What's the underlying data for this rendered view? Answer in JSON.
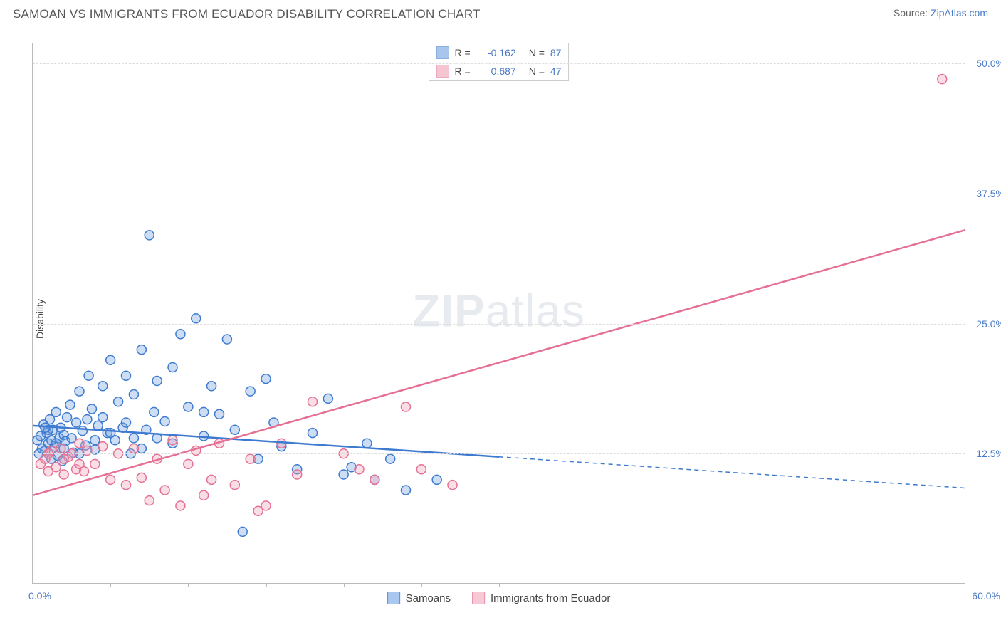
{
  "title": "SAMOAN VS IMMIGRANTS FROM ECUADOR DISABILITY CORRELATION CHART",
  "source_prefix": "Source: ",
  "source_link": "ZipAtlas.com",
  "ylabel": "Disability",
  "watermark_a": "ZIP",
  "watermark_b": "atlas",
  "chart": {
    "type": "scatter",
    "xlim": [
      0,
      60
    ],
    "ylim": [
      0,
      52
    ],
    "y_ticks": [
      12.5,
      25.0,
      37.5,
      50.0
    ],
    "y_tick_labels": [
      "12.5%",
      "25.0%",
      "37.5%",
      "50.0%"
    ],
    "x_tick_major": [
      0,
      60
    ],
    "x_tick_labels": [
      "0.0%",
      "60.0%"
    ],
    "x_tick_minor": [
      5,
      10,
      15,
      20,
      25,
      30
    ],
    "grid_dash_extra": [
      52
    ],
    "background_color": "#ffffff",
    "grid_color": "#dddddd",
    "axis_color": "#bbbbbb",
    "tick_label_color": "#4a7ac7",
    "marker_radius": 6.5,
    "marker_stroke_width": 1.5,
    "marker_fill_opacity": 0.35,
    "series": [
      {
        "name": "Samoans",
        "color": "#6fa0e0",
        "stroke": "#3e7bd0",
        "R": "-0.162",
        "N": "87",
        "trend": {
          "x1": 0,
          "y1": 15.2,
          "x2": 30,
          "y2": 12.2,
          "x2_dash": 60,
          "y2_dash": 9.2,
          "width": 2.5
        },
        "points": [
          [
            0.3,
            13.8
          ],
          [
            0.4,
            12.5
          ],
          [
            0.5,
            14.2
          ],
          [
            0.6,
            13.0
          ],
          [
            0.7,
            15.3
          ],
          [
            0.8,
            12.8
          ],
          [
            0.9,
            14.5
          ],
          [
            1.0,
            13.5
          ],
          [
            1.1,
            15.8
          ],
          [
            1.2,
            12.0
          ],
          [
            1.3,
            14.8
          ],
          [
            1.4,
            13.2
          ],
          [
            1.5,
            16.5
          ],
          [
            1.6,
            12.3
          ],
          [
            1.7,
            14.0
          ],
          [
            1.8,
            15.0
          ],
          [
            1.9,
            11.8
          ],
          [
            2.0,
            14.3
          ],
          [
            2.1,
            13.7
          ],
          [
            2.2,
            16.0
          ],
          [
            2.4,
            17.2
          ],
          [
            2.6,
            12.6
          ],
          [
            2.8,
            15.5
          ],
          [
            3.0,
            18.5
          ],
          [
            3.2,
            14.7
          ],
          [
            3.4,
            13.3
          ],
          [
            3.6,
            20.0
          ],
          [
            3.8,
            16.8
          ],
          [
            4.0,
            12.9
          ],
          [
            4.2,
            15.2
          ],
          [
            4.5,
            19.0
          ],
          [
            4.8,
            14.5
          ],
          [
            5.0,
            21.5
          ],
          [
            5.3,
            13.8
          ],
          [
            5.5,
            17.5
          ],
          [
            5.8,
            15.0
          ],
          [
            6.0,
            20.0
          ],
          [
            6.3,
            12.5
          ],
          [
            6.5,
            18.2
          ],
          [
            7.0,
            22.5
          ],
          [
            7.3,
            14.8
          ],
          [
            7.5,
            33.5
          ],
          [
            7.8,
            16.5
          ],
          [
            8.0,
            19.5
          ],
          [
            8.5,
            15.6
          ],
          [
            9.0,
            20.8
          ],
          [
            9.5,
            24.0
          ],
          [
            10.0,
            17.0
          ],
          [
            10.5,
            25.5
          ],
          [
            11.0,
            14.2
          ],
          [
            11.5,
            19.0
          ],
          [
            12.0,
            16.3
          ],
          [
            12.5,
            23.5
          ],
          [
            13.0,
            14.8
          ],
          [
            13.5,
            5.0
          ],
          [
            14.0,
            18.5
          ],
          [
            14.5,
            12.0
          ],
          [
            15.0,
            19.7
          ],
          [
            15.5,
            15.5
          ],
          [
            16.0,
            13.2
          ],
          [
            17.0,
            11.0
          ],
          [
            18.0,
            14.5
          ],
          [
            19.0,
            17.8
          ],
          [
            20.0,
            10.5
          ],
          [
            20.5,
            11.2
          ],
          [
            21.5,
            13.5
          ],
          [
            22.0,
            10.0
          ],
          [
            23.0,
            12.0
          ],
          [
            24.0,
            9.0
          ],
          [
            26.0,
            10.0
          ],
          [
            2.0,
            13.0
          ],
          [
            2.5,
            14.0
          ],
          [
            3.0,
            12.5
          ],
          [
            3.5,
            15.8
          ],
          [
            4.0,
            13.8
          ],
          [
            5.0,
            14.5
          ],
          [
            6.0,
            15.5
          ],
          [
            7.0,
            13.0
          ],
          [
            8.0,
            14.0
          ],
          [
            9.0,
            13.5
          ],
          [
            1.0,
            14.8
          ],
          [
            1.5,
            13.5
          ],
          [
            0.8,
            15.0
          ],
          [
            1.2,
            13.8
          ],
          [
            4.5,
            16.0
          ],
          [
            6.5,
            14.0
          ],
          [
            11.0,
            16.5
          ]
        ]
      },
      {
        "name": "Immigrants from Ecuador",
        "color": "#f0a0b5",
        "stroke": "#e57093",
        "R": "0.687",
        "N": "47",
        "trend": {
          "x1": 0,
          "y1": 8.5,
          "x2": 60,
          "y2": 34.0,
          "width": 2.5
        },
        "points": [
          [
            0.5,
            11.5
          ],
          [
            0.8,
            12.0
          ],
          [
            1.0,
            10.8
          ],
          [
            1.2,
            12.8
          ],
          [
            1.5,
            11.2
          ],
          [
            1.8,
            13.0
          ],
          [
            2.0,
            10.5
          ],
          [
            2.3,
            12.2
          ],
          [
            2.5,
            12.5
          ],
          [
            2.8,
            11.0
          ],
          [
            3.0,
            13.5
          ],
          [
            3.3,
            10.8
          ],
          [
            3.5,
            12.8
          ],
          [
            4.0,
            11.5
          ],
          [
            4.5,
            13.2
          ],
          [
            5.0,
            10.0
          ],
          [
            5.5,
            12.5
          ],
          [
            6.0,
            9.5
          ],
          [
            6.5,
            13.0
          ],
          [
            7.0,
            10.2
          ],
          [
            7.5,
            8.0
          ],
          [
            8.0,
            12.0
          ],
          [
            8.5,
            9.0
          ],
          [
            9.0,
            13.8
          ],
          [
            9.5,
            7.5
          ],
          [
            10.0,
            11.5
          ],
          [
            10.5,
            12.8
          ],
          [
            11.0,
            8.5
          ],
          [
            11.5,
            10.0
          ],
          [
            12.0,
            13.5
          ],
          [
            13.0,
            9.5
          ],
          [
            14.0,
            12.0
          ],
          [
            14.5,
            7.0
          ],
          [
            15.0,
            7.5
          ],
          [
            16.0,
            13.5
          ],
          [
            17.0,
            10.5
          ],
          [
            18.0,
            17.5
          ],
          [
            20.0,
            12.5
          ],
          [
            21.0,
            11.0
          ],
          [
            22.0,
            10.0
          ],
          [
            24.0,
            17.0
          ],
          [
            25.0,
            11.0
          ],
          [
            27.0,
            9.5
          ],
          [
            1.0,
            12.5
          ],
          [
            2.0,
            12.0
          ],
          [
            3.0,
            11.5
          ],
          [
            58.5,
            48.5
          ]
        ]
      }
    ]
  },
  "legend_bottom": [
    {
      "label": "Samoans",
      "fill": "#a9c8ef",
      "stroke": "#5a8fd8"
    },
    {
      "label": "Immigrants from Ecuador",
      "fill": "#f7c8d5",
      "stroke": "#e88fa8"
    }
  ]
}
